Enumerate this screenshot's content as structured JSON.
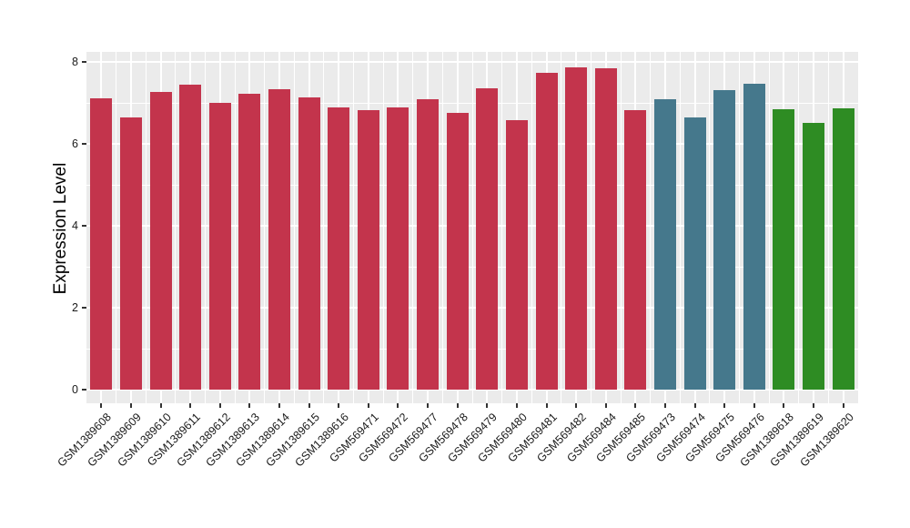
{
  "figure": {
    "background": "#FFFFFF",
    "panel_background": "#EBEBEB",
    "grid_color": "#FFFFFF",
    "tick_color": "#333333",
    "text_color": "#1A1A1A"
  },
  "chart_data": {
    "type": "bar",
    "title": "",
    "xlabel": "",
    "ylabel": "Expression Level",
    "ylim": [
      -0.33,
      8.26
    ],
    "yticks": [
      0,
      2,
      4,
      6,
      8
    ],
    "yminor": [
      1,
      3,
      5,
      7
    ],
    "grid": "on",
    "legend_position": "none",
    "group_colors": {
      "red": "#C3344C",
      "teal": "#45788C",
      "green": "#2E8C23"
    },
    "categories": [
      "GSM1389608",
      "GSM1389609",
      "GSM1389610",
      "GSM1389611",
      "GSM1389612",
      "GSM1389613",
      "GSM1389614",
      "GSM1389615",
      "GSM1389616",
      "GSM569471",
      "GSM569472",
      "GSM569477",
      "GSM569478",
      "GSM569479",
      "GSM569480",
      "GSM569481",
      "GSM569482",
      "GSM569484",
      "GSM569485",
      "GSM569473",
      "GSM569474",
      "GSM569475",
      "GSM569476",
      "GSM1389618",
      "GSM1389619",
      "GSM1389620"
    ],
    "values": [
      7.12,
      6.65,
      7.28,
      7.45,
      7.02,
      7.24,
      7.34,
      7.15,
      6.89,
      6.83,
      6.9,
      7.1,
      6.76,
      7.36,
      6.58,
      7.74,
      7.88,
      7.86,
      6.83,
      7.1,
      6.66,
      7.32,
      7.47,
      6.85,
      6.52,
      6.88
    ],
    "bar_groups": [
      "red",
      "red",
      "red",
      "red",
      "red",
      "red",
      "red",
      "red",
      "red",
      "red",
      "red",
      "red",
      "red",
      "red",
      "red",
      "red",
      "red",
      "red",
      "red",
      "teal",
      "teal",
      "teal",
      "teal",
      "green",
      "green",
      "green"
    ]
  }
}
